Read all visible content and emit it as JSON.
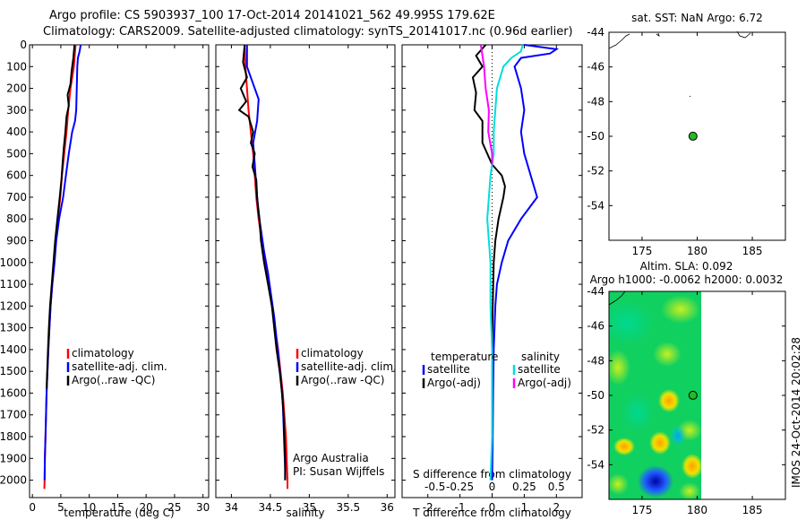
{
  "header": {
    "line1": "Argo profile: CS 5903937_100 17-Oct-2014 20141021_562 49.995S 179.62E",
    "line2": "Climatology: CARS2009. Satellite-adjusted climatology: synTS_20141017.nc (0.96d earlier)"
  },
  "colors": {
    "climatology": "#ff0000",
    "satellite": "#0000ff",
    "argo": "#000000",
    "argo_salinity": "#ff00ff",
    "satellite_salinity": "#00dddd",
    "float_marker": "#22bb22"
  },
  "watermark": "IMOS 24-Oct-2014 20:02:28",
  "chart_data": [
    {
      "type": "line",
      "name": "temperature-profile",
      "xlabel": "temperature (deg C)",
      "ylabel": "",
      "xlim": [
        -0.5,
        31
      ],
      "ylim": [
        2080,
        0
      ],
      "xticks": [
        0,
        5,
        10,
        15,
        20,
        25,
        30
      ],
      "xtick_labels": [
        "0",
        "5",
        "10",
        "15",
        "20",
        "25",
        "30"
      ],
      "yticks": [
        0,
        100,
        200,
        300,
        400,
        500,
        600,
        700,
        800,
        900,
        1000,
        1100,
        1200,
        1300,
        1400,
        1500,
        1600,
        1700,
        1800,
        1900,
        2000
      ],
      "legend": [
        "climatology",
        "satellite-adj. clim.",
        "Argo(..raw -QC)"
      ],
      "series": [
        {
          "name": "climatology",
          "color": "#ff0000",
          "points": [
            [
              7.6,
              0
            ],
            [
              7.3,
              100
            ],
            [
              6.7,
              200
            ],
            [
              6.3,
              300
            ],
            [
              6.0,
              400
            ],
            [
              5.6,
              500
            ],
            [
              5.2,
              600
            ],
            [
              4.9,
              700
            ],
            [
              4.5,
              800
            ],
            [
              4.1,
              900
            ],
            [
              3.8,
              1000
            ],
            [
              3.5,
              1100
            ],
            [
              3.2,
              1200
            ],
            [
              3.0,
              1300
            ],
            [
              2.8,
              1400
            ],
            [
              2.65,
              1500
            ],
            [
              2.5,
              1600
            ],
            [
              2.4,
              1700
            ],
            [
              2.3,
              1800
            ],
            [
              2.2,
              1900
            ],
            [
              2.15,
              2000
            ],
            [
              2.1,
              2040
            ]
          ]
        },
        {
          "name": "satellite-adj. clim.",
          "color": "#0000ff",
          "points": [
            [
              8.5,
              0
            ],
            [
              8.3,
              30
            ],
            [
              8.0,
              60
            ],
            [
              7.9,
              100
            ],
            [
              7.8,
              200
            ],
            [
              7.7,
              300
            ],
            [
              7.5,
              350
            ],
            [
              7.0,
              400
            ],
            [
              6.4,
              500
            ],
            [
              5.9,
              600
            ],
            [
              5.4,
              700
            ],
            [
              4.7,
              800
            ],
            [
              4.2,
              900
            ],
            [
              3.9,
              1000
            ],
            [
              3.5,
              1100
            ],
            [
              3.2,
              1200
            ],
            [
              3.0,
              1300
            ],
            [
              2.8,
              1400
            ],
            [
              2.65,
              1500
            ],
            [
              2.5,
              1600
            ],
            [
              2.4,
              1700
            ],
            [
              2.3,
              1800
            ],
            [
              2.2,
              1900
            ],
            [
              2.15,
              2000
            ]
          ]
        },
        {
          "name": "Argo(..raw -QC)",
          "color": "#000000",
          "points": [
            [
              7.4,
              0
            ],
            [
              7.2,
              60
            ],
            [
              6.9,
              120
            ],
            [
              6.7,
              180
            ],
            [
              6.2,
              230
            ],
            [
              6.4,
              280
            ],
            [
              6.0,
              330
            ],
            [
              5.8,
              400
            ],
            [
              5.5,
              480
            ],
            [
              5.3,
              550
            ],
            [
              5.1,
              620
            ],
            [
              4.8,
              700
            ],
            [
              4.4,
              800
            ],
            [
              4.0,
              900
            ],
            [
              3.7,
              1000
            ],
            [
              3.4,
              1100
            ],
            [
              3.1,
              1200
            ],
            [
              2.9,
              1300
            ],
            [
              2.75,
              1400
            ],
            [
              2.6,
              1500
            ],
            [
              2.5,
              1580
            ]
          ]
        }
      ]
    },
    {
      "type": "line",
      "name": "salinity-profile",
      "xlabel": "salinity",
      "xlim": [
        33.8,
        36.1
      ],
      "ylim": [
        2080,
        0
      ],
      "xticks": [
        34,
        34.5,
        35,
        35.5,
        36
      ],
      "xtick_labels": [
        "34",
        "34.5",
        "35",
        "35.5",
        "36"
      ],
      "legend": [
        "climatology",
        "satellite-adj. clim.",
        "Argo(..raw -QC)"
      ],
      "annotations": [
        "Argo Australia",
        "PI: Susan Wijffels"
      ],
      "series": [
        {
          "name": "climatology",
          "color": "#ff0000",
          "points": [
            [
              34.17,
              0
            ],
            [
              34.18,
              100
            ],
            [
              34.2,
              200
            ],
            [
              34.22,
              300
            ],
            [
              34.25,
              400
            ],
            [
              34.28,
              500
            ],
            [
              34.3,
              600
            ],
            [
              34.32,
              700
            ],
            [
              34.35,
              800
            ],
            [
              34.39,
              900
            ],
            [
              34.43,
              1000
            ],
            [
              34.48,
              1100
            ],
            [
              34.52,
              1200
            ],
            [
              34.56,
              1300
            ],
            [
              34.6,
              1400
            ],
            [
              34.63,
              1500
            ],
            [
              34.66,
              1600
            ],
            [
              34.68,
              1700
            ],
            [
              34.7,
              1800
            ],
            [
              34.71,
              1900
            ],
            [
              34.72,
              2000
            ],
            [
              34.72,
              2040
            ]
          ]
        },
        {
          "name": "satellite-adj. clim.",
          "color": "#0000ff",
          "points": [
            [
              34.2,
              0
            ],
            [
              34.2,
              100
            ],
            [
              34.25,
              150
            ],
            [
              34.35,
              250
            ],
            [
              34.33,
              350
            ],
            [
              34.28,
              450
            ],
            [
              34.3,
              550
            ],
            [
              34.32,
              650
            ],
            [
              34.34,
              750
            ],
            [
              34.38,
              850
            ],
            [
              34.42,
              950
            ],
            [
              34.47,
              1050
            ],
            [
              34.51,
              1150
            ],
            [
              34.55,
              1250
            ],
            [
              34.58,
              1350
            ],
            [
              34.61,
              1450
            ],
            [
              34.64,
              1550
            ],
            [
              34.66,
              1650
            ],
            [
              34.67,
              1750
            ],
            [
              34.68,
              1850
            ],
            [
              34.69,
              1950
            ],
            [
              34.69,
              2000
            ]
          ]
        },
        {
          "name": "Argo(..raw -QC)",
          "color": "#000000",
          "points": [
            [
              34.17,
              0
            ],
            [
              34.15,
              80
            ],
            [
              34.2,
              150
            ],
            [
              34.12,
              200
            ],
            [
              34.19,
              260
            ],
            [
              34.1,
              300
            ],
            [
              34.22,
              330
            ],
            [
              34.28,
              400
            ],
            [
              34.25,
              450
            ],
            [
              34.3,
              500
            ],
            [
              34.27,
              560
            ],
            [
              34.32,
              620
            ],
            [
              34.33,
              700
            ],
            [
              34.36,
              800
            ],
            [
              34.38,
              900
            ],
            [
              34.42,
              1000
            ],
            [
              34.47,
              1100
            ],
            [
              34.52,
              1200
            ],
            [
              34.55,
              1300
            ],
            [
              34.58,
              1400
            ],
            [
              34.62,
              1500
            ],
            [
              34.65,
              1600
            ],
            [
              34.67,
              1700
            ],
            [
              34.68,
              1800
            ],
            [
              34.69,
              1900
            ],
            [
              34.69,
              2000
            ]
          ]
        }
      ]
    },
    {
      "type": "line",
      "name": "difference-profile",
      "xlabel": "T difference from climatology",
      "xlabel_top": "S difference from climatology",
      "xlim": [
        -2.8,
        2.8
      ],
      "ylim": [
        2080,
        0
      ],
      "xticks": [
        -2,
        -1,
        0,
        1,
        2
      ],
      "xtick_labels": [
        "-2",
        "-1",
        "0",
        "1",
        "2"
      ],
      "xticks_top": [
        -2,
        -1,
        0,
        1,
        2
      ],
      "xtick_labels_top": [
        "-0.5",
        "-0.25",
        "0",
        "0.25",
        "0.5"
      ],
      "legend_groups": {
        "temperature": [
          "satellite",
          "Argo(-adj)"
        ],
        "salinity": [
          "satellite",
          "Argo(-adj)"
        ]
      },
      "legend_titles": [
        "temperature",
        "salinity"
      ],
      "legend": [
        "satellite",
        "Argo(-adj)",
        "satellite",
        "Argo(-adj)"
      ],
      "series": [
        {
          "name": "temperature satellite",
          "color": "#0000ff",
          "points": [
            [
              1.0,
              0
            ],
            [
              2.0,
              20
            ],
            [
              1.8,
              40
            ],
            [
              0.9,
              60
            ],
            [
              0.7,
              100
            ],
            [
              0.9,
              200
            ],
            [
              1.0,
              300
            ],
            [
              0.9,
              400
            ],
            [
              1.0,
              500
            ],
            [
              1.2,
              600
            ],
            [
              1.4,
              700
            ],
            [
              0.9,
              800
            ],
            [
              0.5,
              900
            ],
            [
              0.3,
              1000
            ],
            [
              0.15,
              1100
            ],
            [
              0.1,
              1200
            ],
            [
              0.05,
              1400
            ],
            [
              0.03,
              1600
            ],
            [
              0.02,
              1800
            ],
            [
              0.0,
              2000
            ]
          ]
        },
        {
          "name": "temperature Argo(-adj)",
          "color": "#000000",
          "points": [
            [
              -0.2,
              0
            ],
            [
              -0.5,
              50
            ],
            [
              -0.3,
              100
            ],
            [
              -0.6,
              150
            ],
            [
              -0.5,
              220
            ],
            [
              -0.55,
              300
            ],
            [
              -0.3,
              350
            ],
            [
              -0.3,
              450
            ],
            [
              -0.15,
              500
            ],
            [
              0.0,
              550
            ],
            [
              0.3,
              600
            ],
            [
              0.4,
              650
            ],
            [
              0.35,
              700
            ],
            [
              0.2,
              800
            ],
            [
              0.1,
              900
            ],
            [
              0.05,
              1000
            ],
            [
              0.02,
              1200
            ],
            [
              0.0,
              1400
            ]
          ]
        },
        {
          "name": "salinity satellite",
          "color": "#00dddd",
          "points": [
            [
              0.95,
              0
            ],
            [
              0.9,
              30
            ],
            [
              0.6,
              60
            ],
            [
              0.35,
              100
            ],
            [
              0.15,
              200
            ],
            [
              0.1,
              300
            ],
            [
              0.05,
              400
            ],
            [
              0.05,
              500
            ],
            [
              -0.05,
              600
            ],
            [
              -0.1,
              700
            ],
            [
              -0.15,
              800
            ],
            [
              -0.1,
              900
            ],
            [
              -0.05,
              1000
            ],
            [
              -0.05,
              1200
            ],
            [
              0.0,
              1400
            ],
            [
              0.0,
              1600
            ],
            [
              0.0,
              1800
            ],
            [
              -0.05,
              2000
            ]
          ]
        },
        {
          "name": "salinity Argo(-adj)",
          "color": "#ff00ff",
          "points": [
            [
              -0.35,
              0
            ],
            [
              -0.3,
              50
            ],
            [
              -0.25,
              100
            ],
            [
              -0.2,
              200
            ],
            [
              -0.1,
              300
            ],
            [
              -0.12,
              400
            ],
            [
              0.0,
              500
            ],
            [
              0.0,
              550
            ]
          ]
        }
      ]
    },
    {
      "type": "scatter",
      "name": "map-sst",
      "title": "sat. SST: NaN Argo: 6.72",
      "xlim": [
        172,
        188
      ],
      "ylim": [
        -56,
        -44
      ],
      "xticks": [
        175,
        180,
        185
      ],
      "xtick_labels": [
        "175",
        "180",
        "185"
      ],
      "yticks": [
        -44,
        -46,
        -48,
        -50,
        -52,
        -54
      ],
      "ytick_labels": [
        "-44",
        "-46",
        "-48",
        "-50",
        "-52",
        "-54"
      ],
      "float_position": [
        179.62,
        -49.995
      ]
    },
    {
      "type": "heatmap",
      "name": "map-sla",
      "title": "Altim. SLA: 0.092",
      "subtitle": "Argo h1000: -0.0062 h2000: 0.0032",
      "xlim": [
        172,
        188
      ],
      "ylim": [
        -56,
        -44
      ],
      "xticks": [
        175,
        180,
        185
      ],
      "xtick_labels": [
        "175",
        "180",
        "185"
      ],
      "yticks": [
        -44,
        -46,
        -48,
        -50,
        -52,
        -54
      ],
      "ytick_labels": [
        "-44",
        "-46",
        "-48",
        "-50",
        "-52",
        "-54"
      ],
      "data_extent_lon": [
        172,
        180
      ],
      "float_position": [
        179.62,
        -49.995
      ]
    }
  ]
}
